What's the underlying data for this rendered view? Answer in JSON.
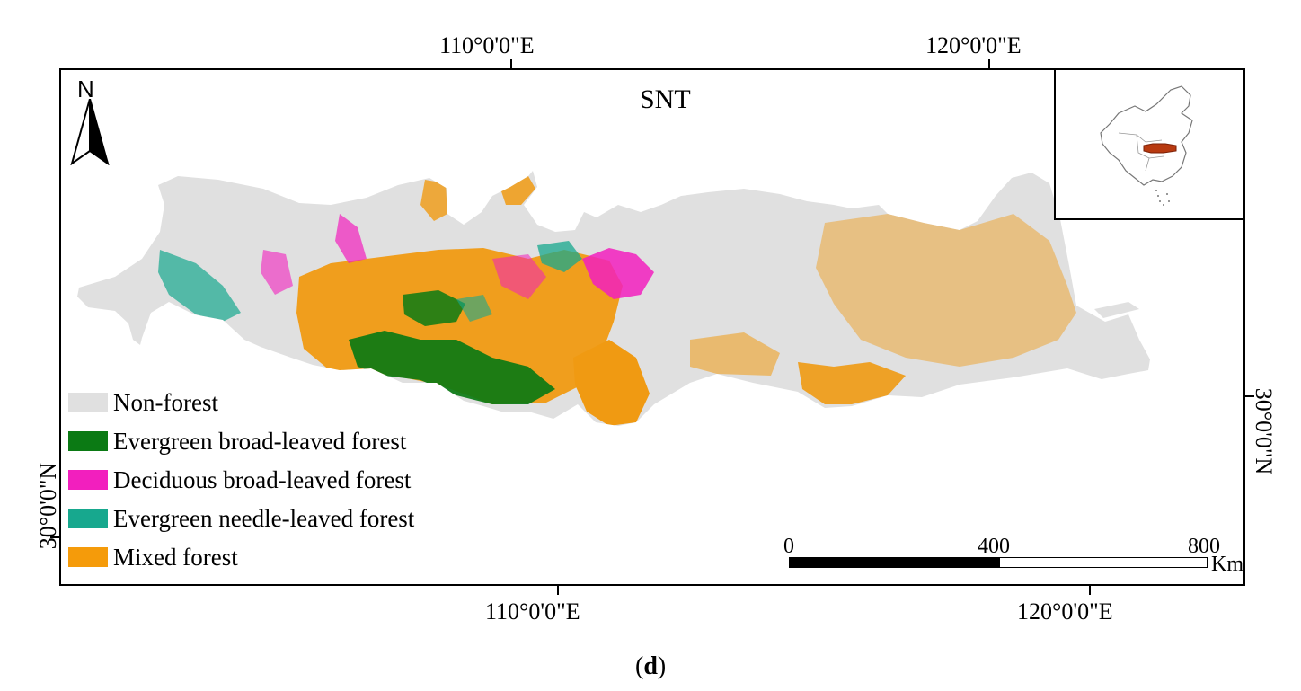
{
  "map": {
    "title": "SNT",
    "north_label": "N",
    "panel_label": "(d)",
    "coordinates": {
      "top_left": "110°0'0\"E",
      "top_right": "120°0'0\"E",
      "bottom_left": "110°0'0\"E",
      "bottom_right": "120°0'0\"E",
      "left": "30°0'0\"N",
      "right": "30°0'0\"N"
    },
    "scale_bar": {
      "unit": "Km",
      "labels": [
        "0",
        "400",
        "800"
      ]
    },
    "legend": [
      {
        "label": "Non-forest",
        "color": "#e0e0e0"
      },
      {
        "label": "Evergreen broad-leaved forest",
        "color": "#0b7a14"
      },
      {
        "label": "Deciduous broad-leaved forest",
        "color": "#f21fbe"
      },
      {
        "label": "Evergreen needle-leaved forest",
        "color": "#17a88e"
      },
      {
        "label": "Mixed forest",
        "color": "#f59b0a"
      }
    ],
    "inset_highlight_color": "#b83a10"
  }
}
